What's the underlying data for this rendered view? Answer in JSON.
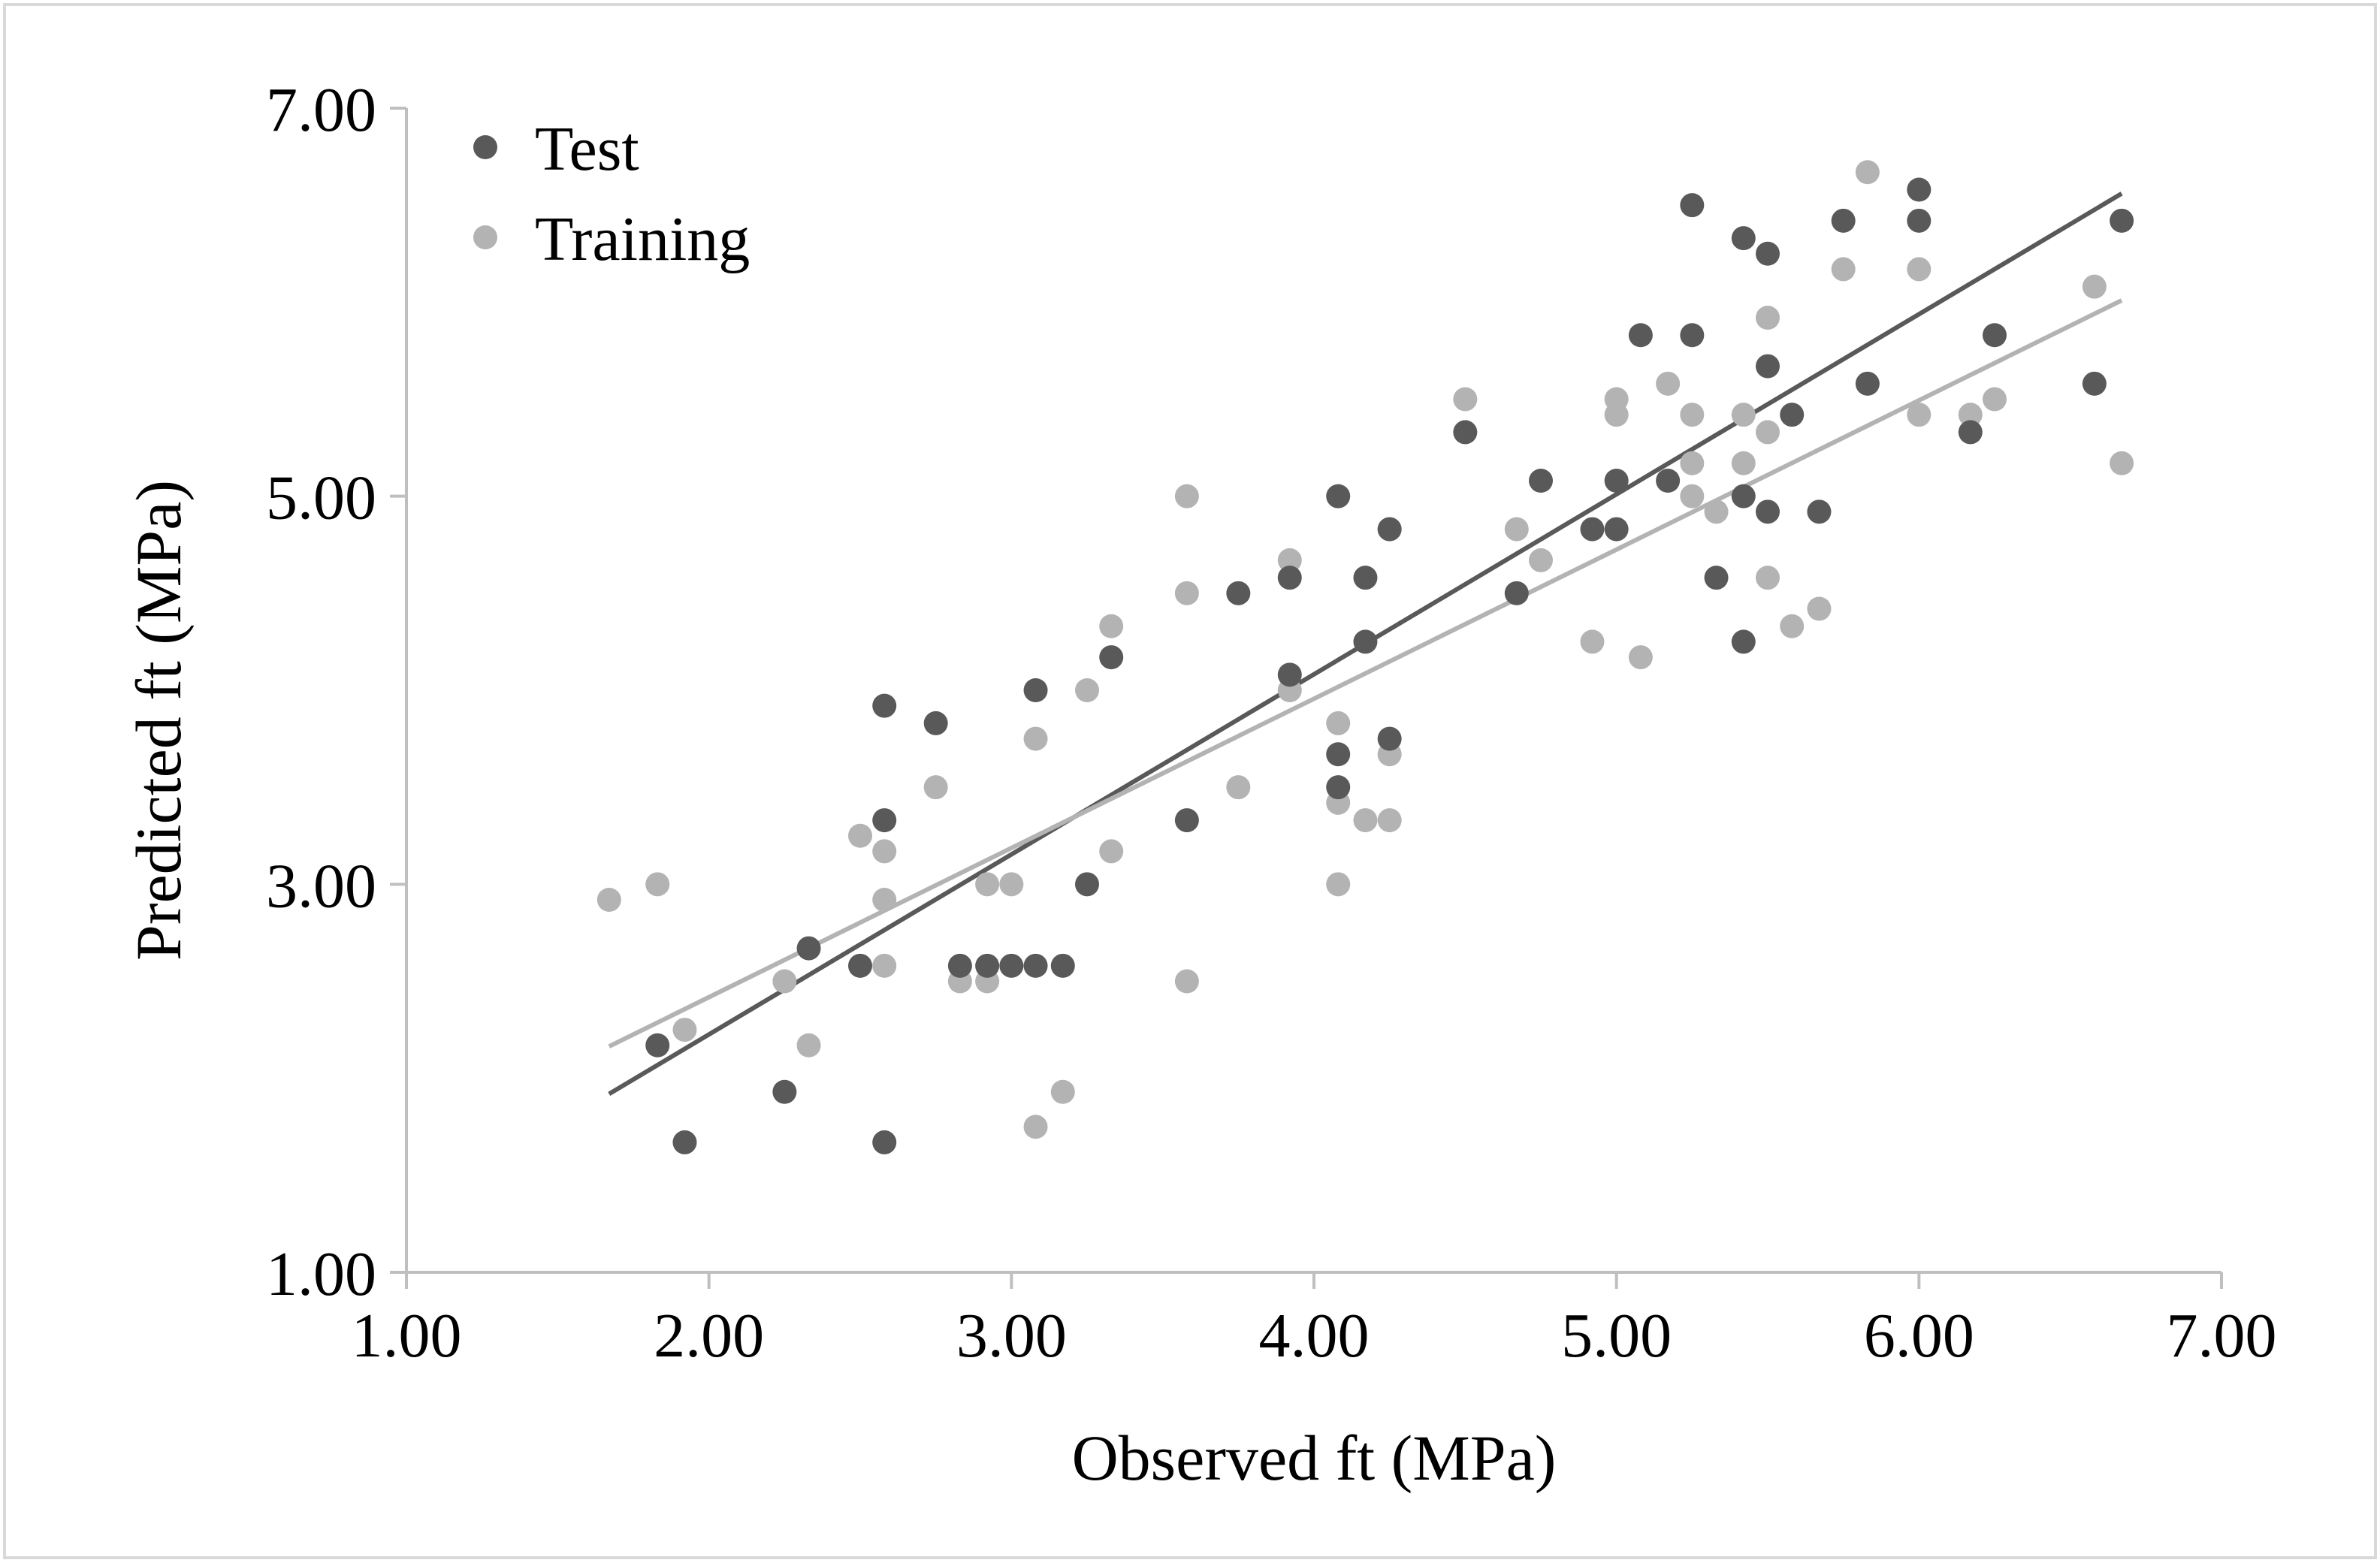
{
  "chart_data": {
    "type": "scatter",
    "title": "",
    "xlabel": "Observed ft (MPa)",
    "ylabel": "Predicted ft (MPa)",
    "xlim": [
      1.0,
      7.0
    ],
    "ylim": [
      1.0,
      7.0
    ],
    "x_ticks": [
      "1.00",
      "2.00",
      "3.00",
      "4.00",
      "5.00",
      "6.00",
      "7.00"
    ],
    "y_ticks": [
      "1.00",
      "3.00",
      "5.00",
      "7.00"
    ],
    "grid": false,
    "legend_position": "top-left",
    "series": [
      {
        "name": "Test",
        "color": "#595959",
        "points": [
          [
            1.83,
            2.17
          ],
          [
            1.92,
            1.67
          ],
          [
            2.25,
            1.93
          ],
          [
            2.33,
            2.67
          ],
          [
            2.5,
            2.58
          ],
          [
            2.58,
            3.92
          ],
          [
            2.58,
            3.33
          ],
          [
            2.58,
            1.67
          ],
          [
            2.75,
            3.83
          ],
          [
            2.83,
            2.58
          ],
          [
            2.92,
            2.58
          ],
          [
            3.0,
            2.58
          ],
          [
            3.08,
            2.58
          ],
          [
            3.17,
            2.58
          ],
          [
            3.08,
            4.0
          ],
          [
            3.25,
            3.0
          ],
          [
            3.33,
            4.17
          ],
          [
            3.58,
            3.33
          ],
          [
            3.75,
            4.5
          ],
          [
            3.92,
            4.58
          ],
          [
            3.92,
            4.08
          ],
          [
            4.08,
            5.0
          ],
          [
            4.08,
            3.67
          ],
          [
            4.08,
            3.5
          ],
          [
            4.17,
            4.58
          ],
          [
            4.17,
            4.25
          ],
          [
            4.25,
            3.75
          ],
          [
            4.25,
            4.83
          ],
          [
            4.5,
            5.33
          ],
          [
            4.67,
            4.5
          ],
          [
            4.75,
            5.08
          ],
          [
            4.92,
            4.83
          ],
          [
            5.0,
            5.08
          ],
          [
            5.0,
            4.83
          ],
          [
            5.08,
            5.83
          ],
          [
            5.17,
            5.08
          ],
          [
            5.25,
            6.5
          ],
          [
            5.25,
            5.83
          ],
          [
            5.33,
            4.58
          ],
          [
            5.42,
            6.33
          ],
          [
            5.42,
            5.0
          ],
          [
            5.42,
            4.25
          ],
          [
            5.5,
            6.25
          ],
          [
            5.5,
            5.67
          ],
          [
            5.5,
            4.92
          ],
          [
            5.58,
            5.42
          ],
          [
            5.67,
            4.92
          ],
          [
            5.75,
            6.42
          ],
          [
            5.83,
            5.58
          ],
          [
            6.0,
            6.58
          ],
          [
            6.0,
            6.42
          ],
          [
            6.17,
            5.33
          ],
          [
            6.25,
            5.83
          ],
          [
            6.58,
            5.58
          ],
          [
            6.67,
            6.42
          ]
        ],
        "trendline": {
          "slope": 0.928,
          "intercept": 0.37,
          "x_range": [
            1.67,
            6.67
          ]
        }
      },
      {
        "name": "Training",
        "color": "#b3b3b3",
        "points": [
          [
            1.67,
            2.92
          ],
          [
            1.83,
            3.0
          ],
          [
            1.92,
            2.25
          ],
          [
            2.25,
            2.5
          ],
          [
            2.33,
            2.17
          ],
          [
            2.5,
            3.25
          ],
          [
            2.58,
            3.17
          ],
          [
            2.58,
            2.92
          ],
          [
            2.58,
            2.58
          ],
          [
            2.75,
            3.5
          ],
          [
            2.83,
            2.5
          ],
          [
            2.92,
            3.0
          ],
          [
            2.92,
            2.5
          ],
          [
            3.0,
            3.0
          ],
          [
            3.08,
            3.75
          ],
          [
            3.08,
            1.75
          ],
          [
            3.17,
            1.93
          ],
          [
            3.25,
            4.0
          ],
          [
            3.33,
            4.33
          ],
          [
            3.33,
            3.17
          ],
          [
            3.58,
            5.0
          ],
          [
            3.58,
            4.5
          ],
          [
            3.58,
            2.5
          ],
          [
            3.75,
            3.5
          ],
          [
            3.92,
            4.67
          ],
          [
            3.92,
            4.0
          ],
          [
            4.08,
            3.83
          ],
          [
            4.08,
            3.42
          ],
          [
            4.08,
            3.0
          ],
          [
            4.17,
            3.33
          ],
          [
            4.25,
            4.83
          ],
          [
            4.25,
            3.67
          ],
          [
            4.25,
            3.33
          ],
          [
            4.5,
            5.5
          ],
          [
            4.67,
            4.83
          ],
          [
            4.75,
            4.67
          ],
          [
            4.92,
            4.25
          ],
          [
            5.0,
            5.5
          ],
          [
            5.0,
            5.42
          ],
          [
            5.08,
            4.17
          ],
          [
            5.17,
            5.58
          ],
          [
            5.25,
            5.42
          ],
          [
            5.25,
            5.17
          ],
          [
            5.25,
            5.0
          ],
          [
            5.33,
            4.92
          ],
          [
            5.42,
            5.42
          ],
          [
            5.42,
            5.17
          ],
          [
            5.5,
            5.92
          ],
          [
            5.5,
            5.33
          ],
          [
            5.5,
            4.58
          ],
          [
            5.58,
            4.33
          ],
          [
            5.67,
            4.42
          ],
          [
            5.83,
            6.67
          ],
          [
            5.75,
            6.17
          ],
          [
            6.0,
            6.17
          ],
          [
            6.0,
            5.42
          ],
          [
            6.17,
            5.42
          ],
          [
            6.25,
            5.5
          ],
          [
            6.58,
            6.08
          ],
          [
            6.67,
            5.17
          ]
        ],
        "trendline": {
          "slope": 0.769,
          "intercept": 0.88,
          "x_range": [
            1.67,
            6.67
          ]
        }
      }
    ]
  }
}
